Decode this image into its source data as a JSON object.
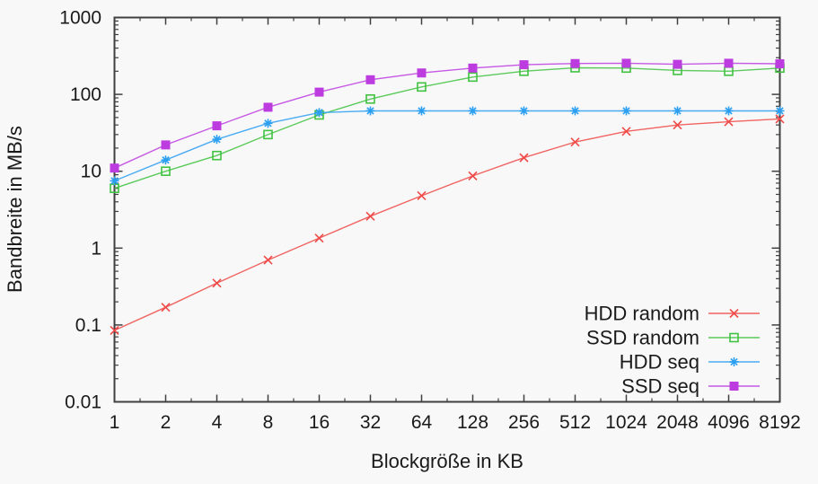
{
  "chart_data": {
    "type": "line",
    "title": "",
    "xlabel": "Blockgröße in KB",
    "ylabel": "Bandbreite in MB/s",
    "x_scale": "log2",
    "y_scale": "log10",
    "xlim": [
      1,
      8192
    ],
    "ylim": [
      0.01,
      1000
    ],
    "grid": false,
    "legend_position": "inside-bottom-right",
    "x_ticks": [
      1,
      2,
      4,
      8,
      16,
      32,
      64,
      128,
      256,
      512,
      1024,
      2048,
      4096,
      8192
    ],
    "x_tick_labels": [
      "1",
      "2",
      "4",
      "8",
      "16",
      "32",
      "64",
      "128",
      "256",
      "512",
      "1024",
      "2048",
      "4096",
      "8192"
    ],
    "y_ticks": [
      0.01,
      0.1,
      1,
      10,
      100,
      1000
    ],
    "y_tick_labels": [
      "0.01",
      "0.1",
      "1",
      "10",
      "100",
      "1000"
    ],
    "x": [
      1,
      2,
      4,
      8,
      16,
      32,
      64,
      128,
      256,
      512,
      1024,
      2048,
      4096,
      8192
    ],
    "series": [
      {
        "name": "HDD random",
        "color": "#ef4a47",
        "marker": "cross",
        "values": [
          0.085,
          0.17,
          0.35,
          0.7,
          1.35,
          2.6,
          4.8,
          8.7,
          15,
          24,
          33,
          40,
          44,
          48
        ]
      },
      {
        "name": "SSD random",
        "color": "#41c241",
        "marker": "open-square",
        "values": [
          6,
          10,
          16,
          30,
          54,
          87,
          125,
          168,
          200,
          222,
          220,
          205,
          200,
          220
        ]
      },
      {
        "name": "HDD seq",
        "color": "#2b9ff2",
        "marker": "asterisk",
        "values": [
          7.5,
          14,
          26,
          42,
          58,
          61,
          61,
          61,
          61,
          61,
          61,
          61,
          61,
          61
        ]
      },
      {
        "name": "SSD seq",
        "color": "#bd3ce0",
        "marker": "filled-square",
        "values": [
          11,
          22,
          39,
          68,
          107,
          155,
          190,
          220,
          243,
          252,
          254,
          246,
          254,
          250
        ]
      }
    ]
  },
  "colors": {
    "background": "#f8f8f8",
    "axis": "#404040",
    "text": "#1a1a1a"
  }
}
